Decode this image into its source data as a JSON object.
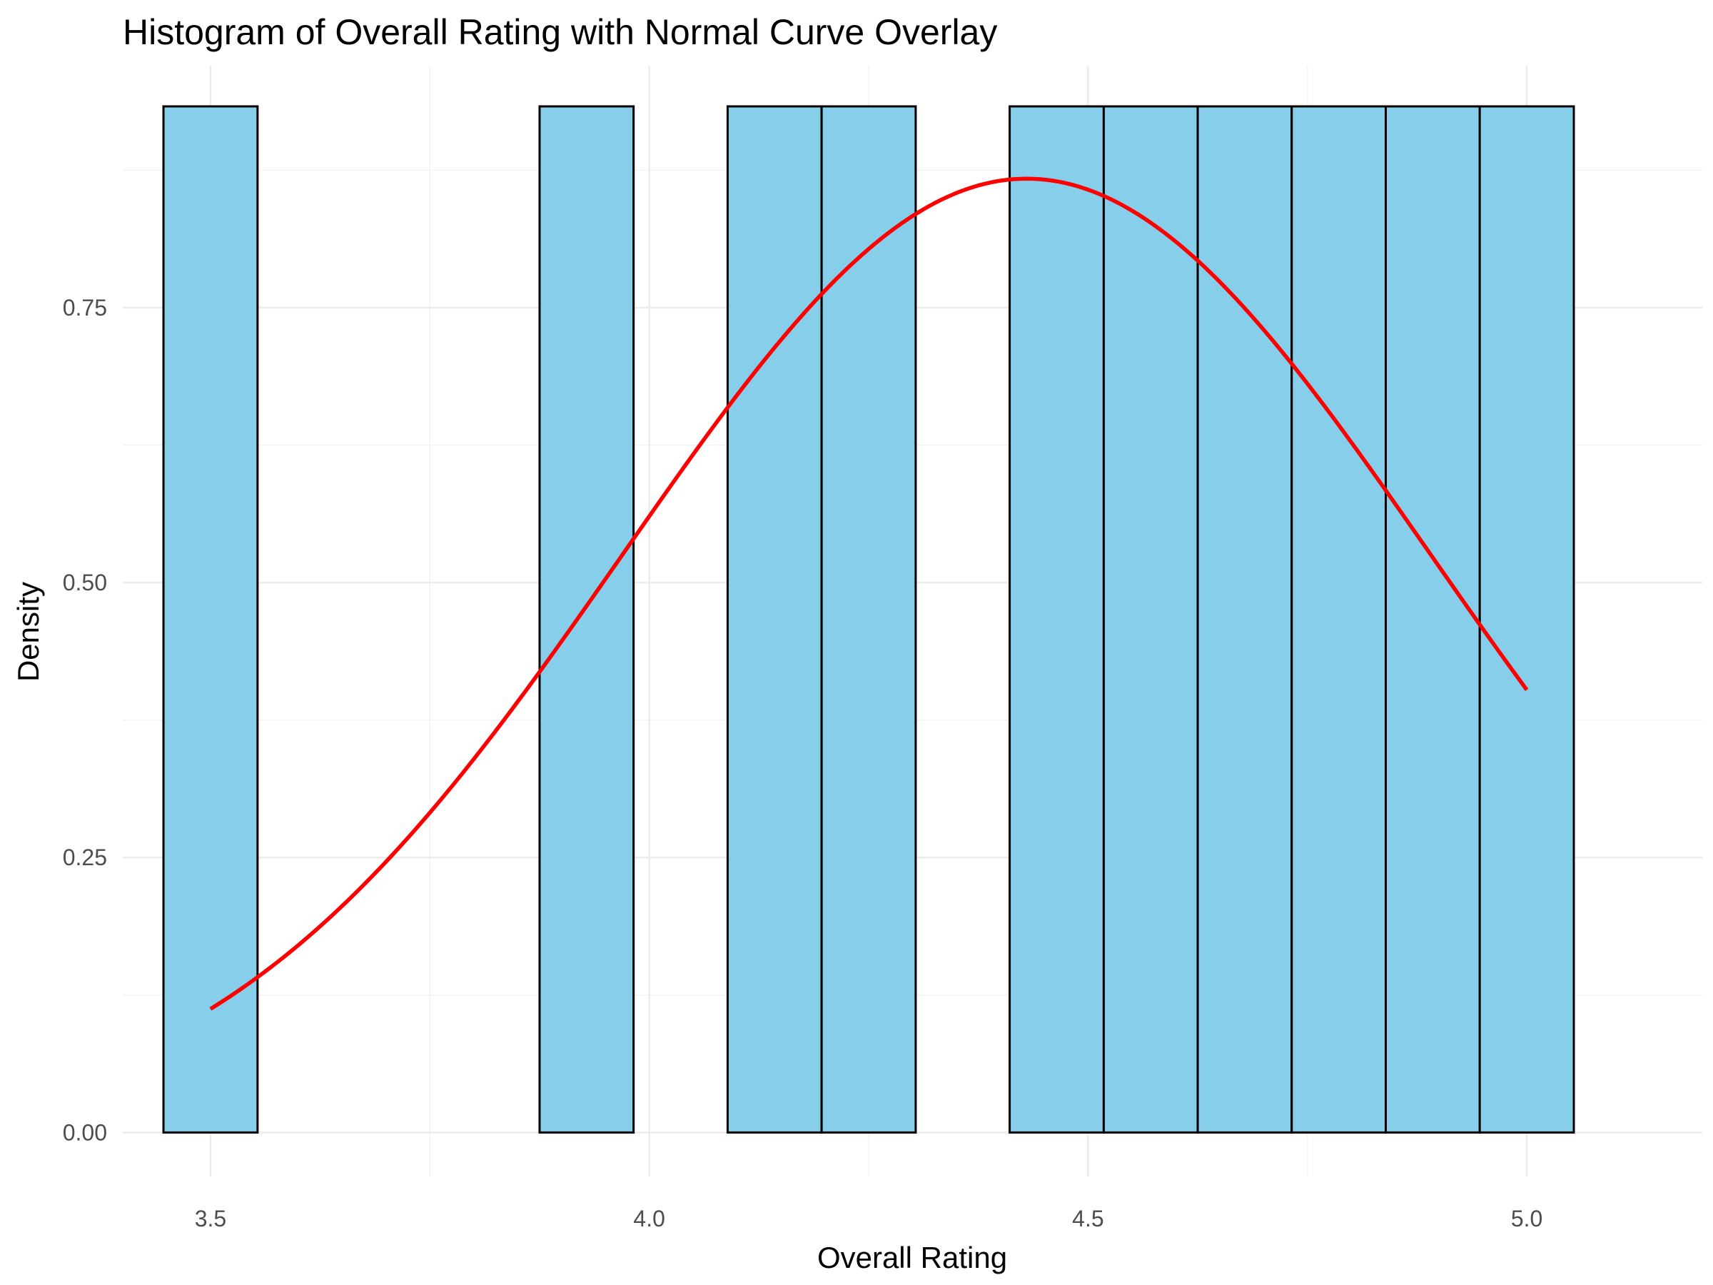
{
  "chart_data": {
    "type": "bar",
    "subtype": "histogram",
    "title": "Histogram of Overall Rating with Normal Curve Overlay",
    "xlabel": "Overall Rating",
    "ylabel": "Density",
    "xlim": [
      3.4,
      5.2
    ],
    "ylim": [
      -0.04,
      0.97
    ],
    "x_ticks": [
      3.5,
      4.0,
      4.5,
      5.0
    ],
    "x_tick_labels": [
      "3.5",
      "4.0",
      "4.5",
      "5.0"
    ],
    "y_ticks": [
      0.0,
      0.25,
      0.5,
      0.75
    ],
    "y_tick_labels": [
      "0.00",
      "0.25",
      "0.50",
      "0.75"
    ],
    "grid": true,
    "bar_fill": "#87CEEB",
    "bar_outline": "#000000",
    "curve_color": "#FF0000",
    "bins": [
      {
        "start": 3.4464,
        "end": 3.5536,
        "density": 0.933
      },
      {
        "start": 3.5536,
        "end": 3.6607,
        "density": 0
      },
      {
        "start": 3.6607,
        "end": 3.7679,
        "density": 0
      },
      {
        "start": 3.7679,
        "end": 3.875,
        "density": 0
      },
      {
        "start": 3.875,
        "end": 3.9821,
        "density": 0.933
      },
      {
        "start": 3.9821,
        "end": 4.0893,
        "density": 0
      },
      {
        "start": 4.0893,
        "end": 4.1964,
        "density": 0.933
      },
      {
        "start": 4.1964,
        "end": 4.3036,
        "density": 0.933
      },
      {
        "start": 4.3036,
        "end": 4.4107,
        "density": 0
      },
      {
        "start": 4.4107,
        "end": 4.5179,
        "density": 0.933
      },
      {
        "start": 4.5179,
        "end": 4.625,
        "density": 0.933
      },
      {
        "start": 4.625,
        "end": 4.7321,
        "density": 0.933
      },
      {
        "start": 4.7321,
        "end": 4.8393,
        "density": 0.933
      },
      {
        "start": 4.8393,
        "end": 4.9464,
        "density": 0.933
      },
      {
        "start": 4.9464,
        "end": 5.0536,
        "density": 0.933
      }
    ],
    "normal_curve": {
      "name": "Normal curve",
      "mean": 4.43,
      "sd": 0.46,
      "x_range": [
        3.5,
        5.0
      ]
    }
  }
}
